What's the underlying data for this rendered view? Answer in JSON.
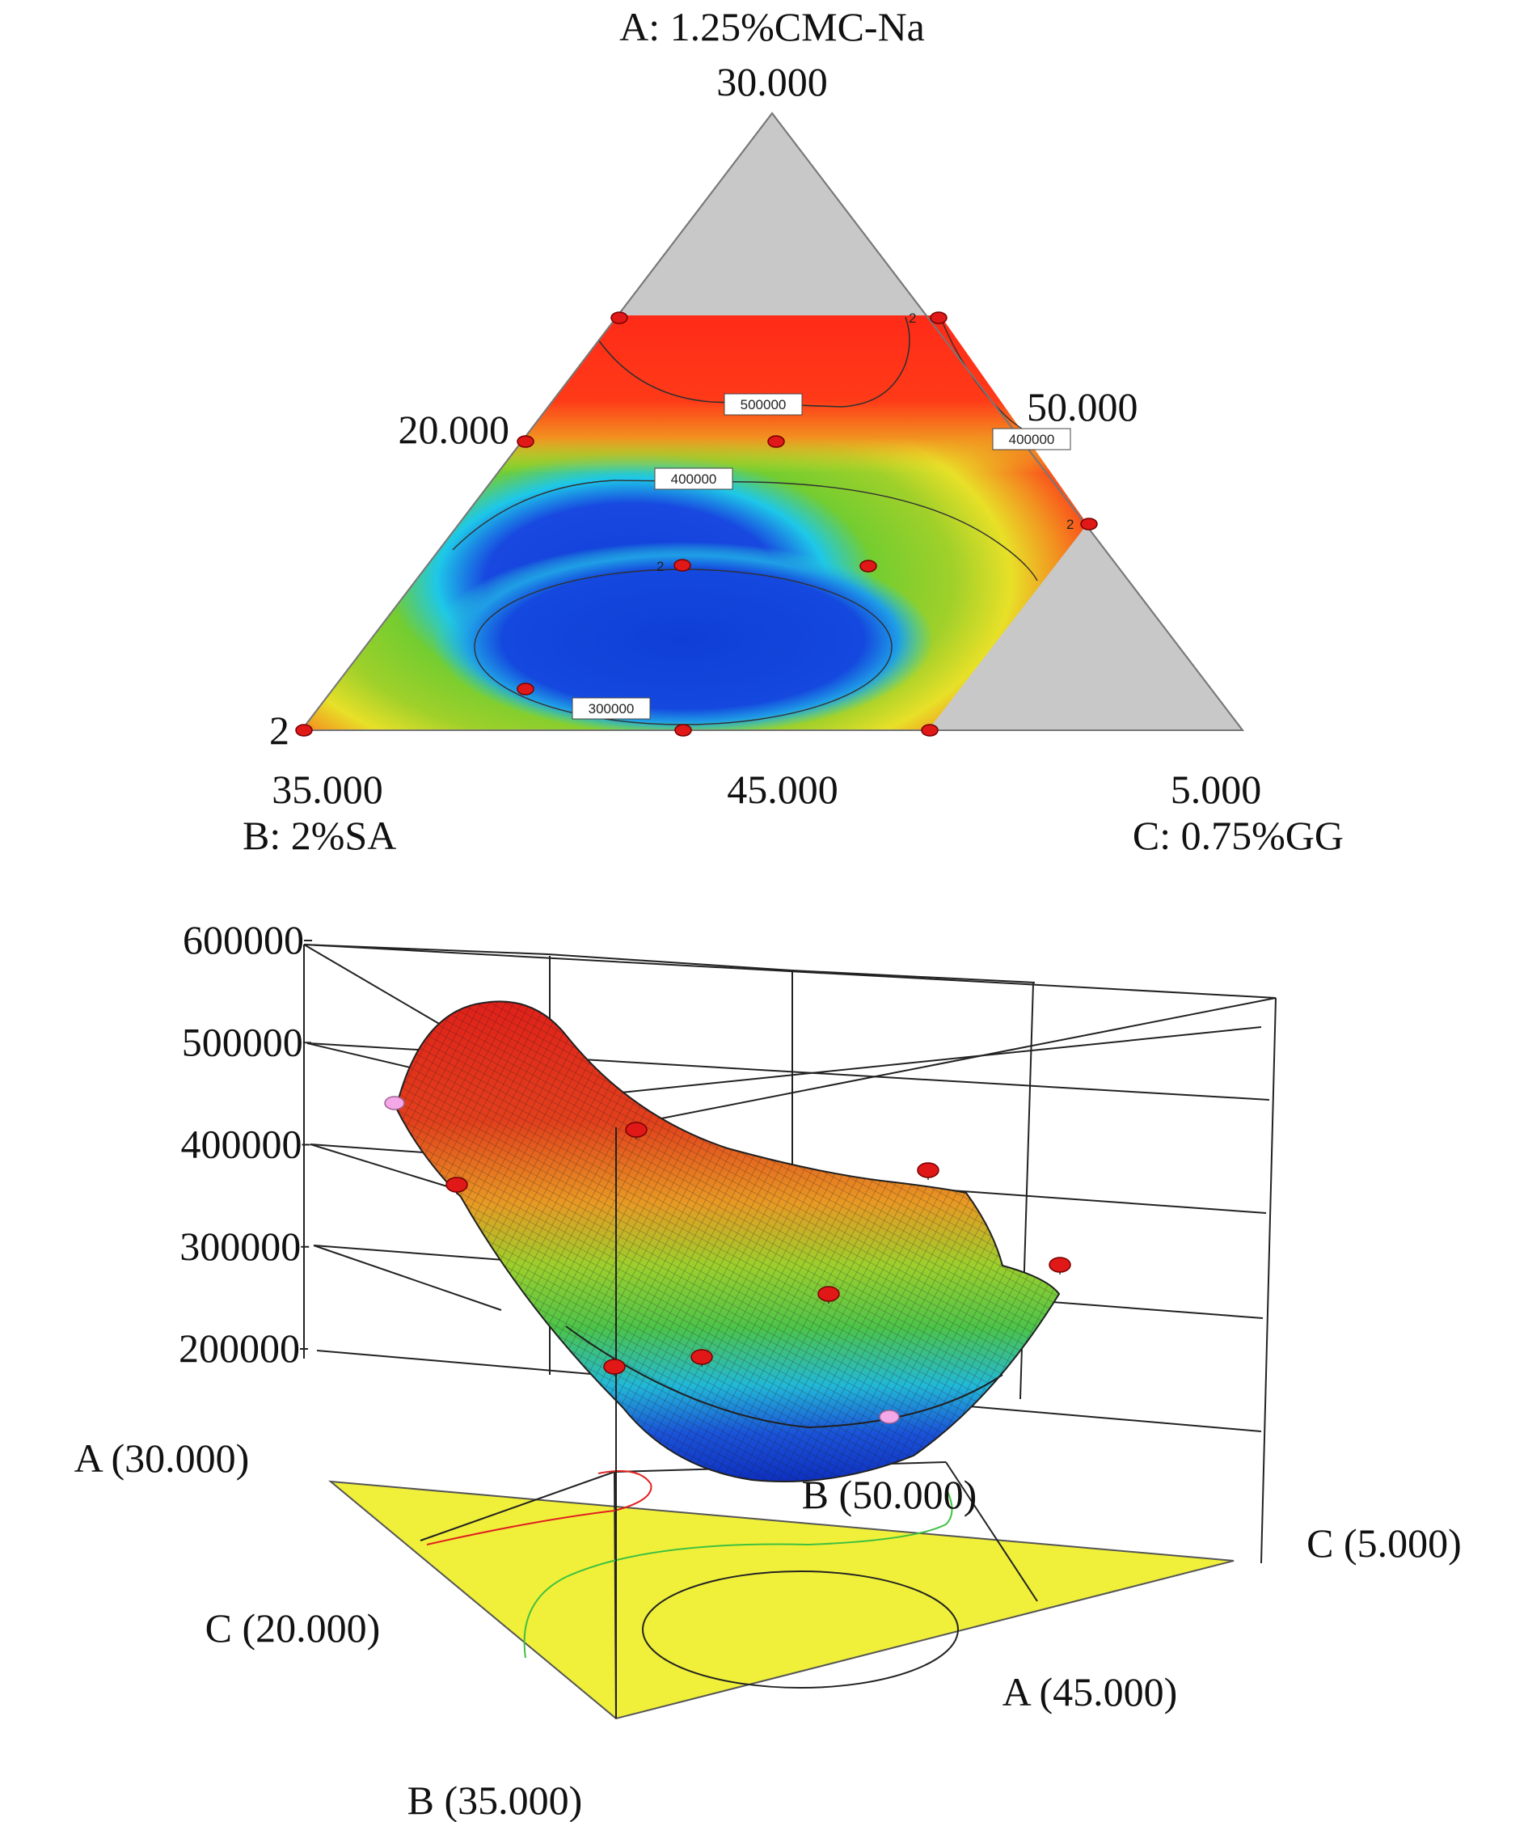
{
  "chart_data": [
    {
      "type": "heatmap",
      "subtype": "ternary-contour",
      "vertex_titles": {
        "A": "A: 1.25%CMC-Na",
        "B": "B: 2%SA",
        "C": "C: 0.75%GG"
      },
      "tick_labels": {
        "A_top": "30.000",
        "A_mid": "20.000",
        "B_left": "35.000",
        "B_right": "50.000",
        "bottom_mid": "45.000",
        "C_right": "5.000",
        "corner_left": "2"
      },
      "contour_levels": [
        300000,
        400000,
        500000
      ],
      "contour_labels": [
        "300000",
        "400000",
        "400000",
        "500000"
      ],
      "colormap": [
        "#1040d8",
        "#19c8e6",
        "#7ccd2c",
        "#e6e62a",
        "#f09020",
        "#ff2a18"
      ],
      "excluded_region_color": "#c8c8c8",
      "design_point_replicate_labels": [
        "2",
        "2",
        "2"
      ]
    },
    {
      "type": "surface",
      "subtype": "ternary-3d-response",
      "z_ticks": [
        "600000",
        "500000",
        "400000",
        "300000",
        "200000"
      ],
      "zlim": [
        200000,
        600000
      ],
      "base_labels": {
        "A30": "A (30.000)",
        "B50": "B (50.000)",
        "C5": "C (5.000)",
        "C20": "C (20.000)",
        "A45": "A (45.000)",
        "B35": "B (35.000)"
      },
      "base_color": "#f0f03a",
      "colormap": [
        "#1040d8",
        "#19c8e6",
        "#7ccd2c",
        "#e6e62a",
        "#f09020",
        "#ff2a18"
      ]
    }
  ]
}
